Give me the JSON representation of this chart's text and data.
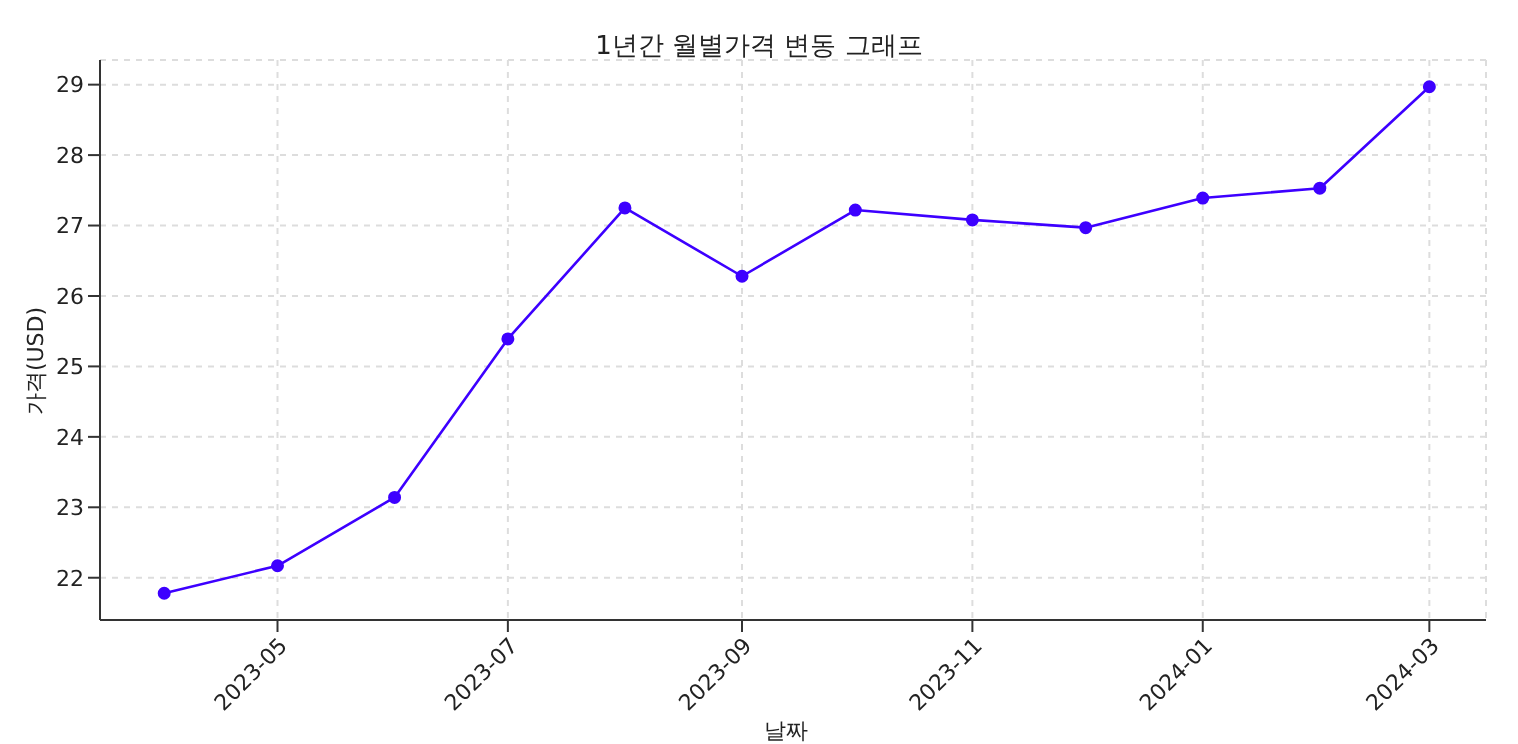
{
  "chart_data": {
    "type": "line",
    "title": "1년간 월별가격 변동 그래프",
    "xlabel": "날짜",
    "ylabel": "가격(USD)",
    "x": [
      "2023-04-01",
      "2023-05-01",
      "2023-06-01",
      "2023-07-01",
      "2023-08-01",
      "2023-09-01",
      "2023-10-01",
      "2023-11-01",
      "2023-12-01",
      "2024-01-01",
      "2024-02-01",
      "2024-03-01"
    ],
    "series": [
      {
        "color": "#3d00ff",
        "values": [
          21.78,
          22.17,
          23.14,
          25.39,
          27.25,
          26.28,
          27.22,
          27.08,
          26.97,
          27.39,
          27.53,
          28.97
        ]
      }
    ],
    "xlim": [
      "2023-03-15",
      "2024-03-16"
    ],
    "xticks": [
      "2023-05",
      "2023-07",
      "2023-09",
      "2023-11",
      "2024-01",
      "2024-03"
    ],
    "ylim": [
      21.4,
      29.35
    ],
    "yticks": [
      22,
      23,
      24,
      25,
      26,
      27,
      28,
      29
    ],
    "grid": true,
    "marker": "circle",
    "line_style": "solid"
  }
}
